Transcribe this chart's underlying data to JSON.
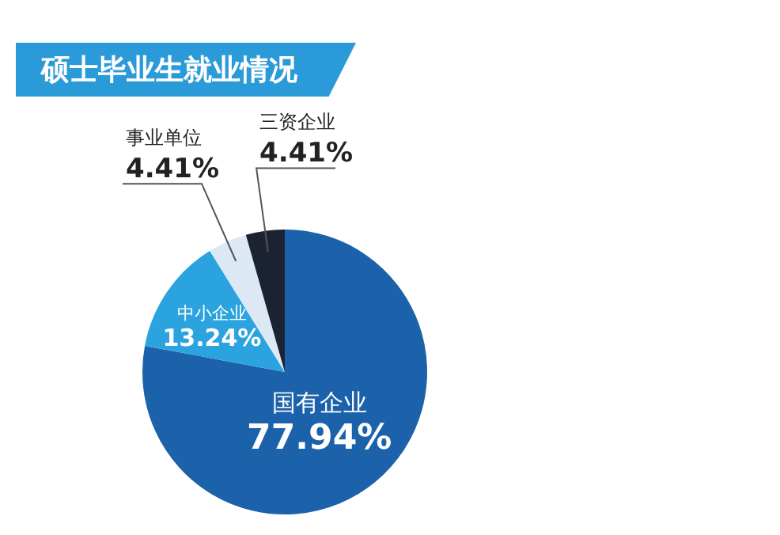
{
  "chart_data": {
    "type": "pie",
    "title": "硕士毕业生就业情况",
    "categories": [
      "国有企业",
      "中小企业",
      "事业单位",
      "三资企业"
    ],
    "values": [
      77.94,
      13.24,
      4.41,
      4.41
    ],
    "value_labels": [
      "77.94%",
      "13.24%",
      "4.41%",
      "4.41%"
    ],
    "colors": [
      "#1c62ab",
      "#2ba3df",
      "#dce9f5",
      "#1b2333"
    ],
    "legend": false
  }
}
